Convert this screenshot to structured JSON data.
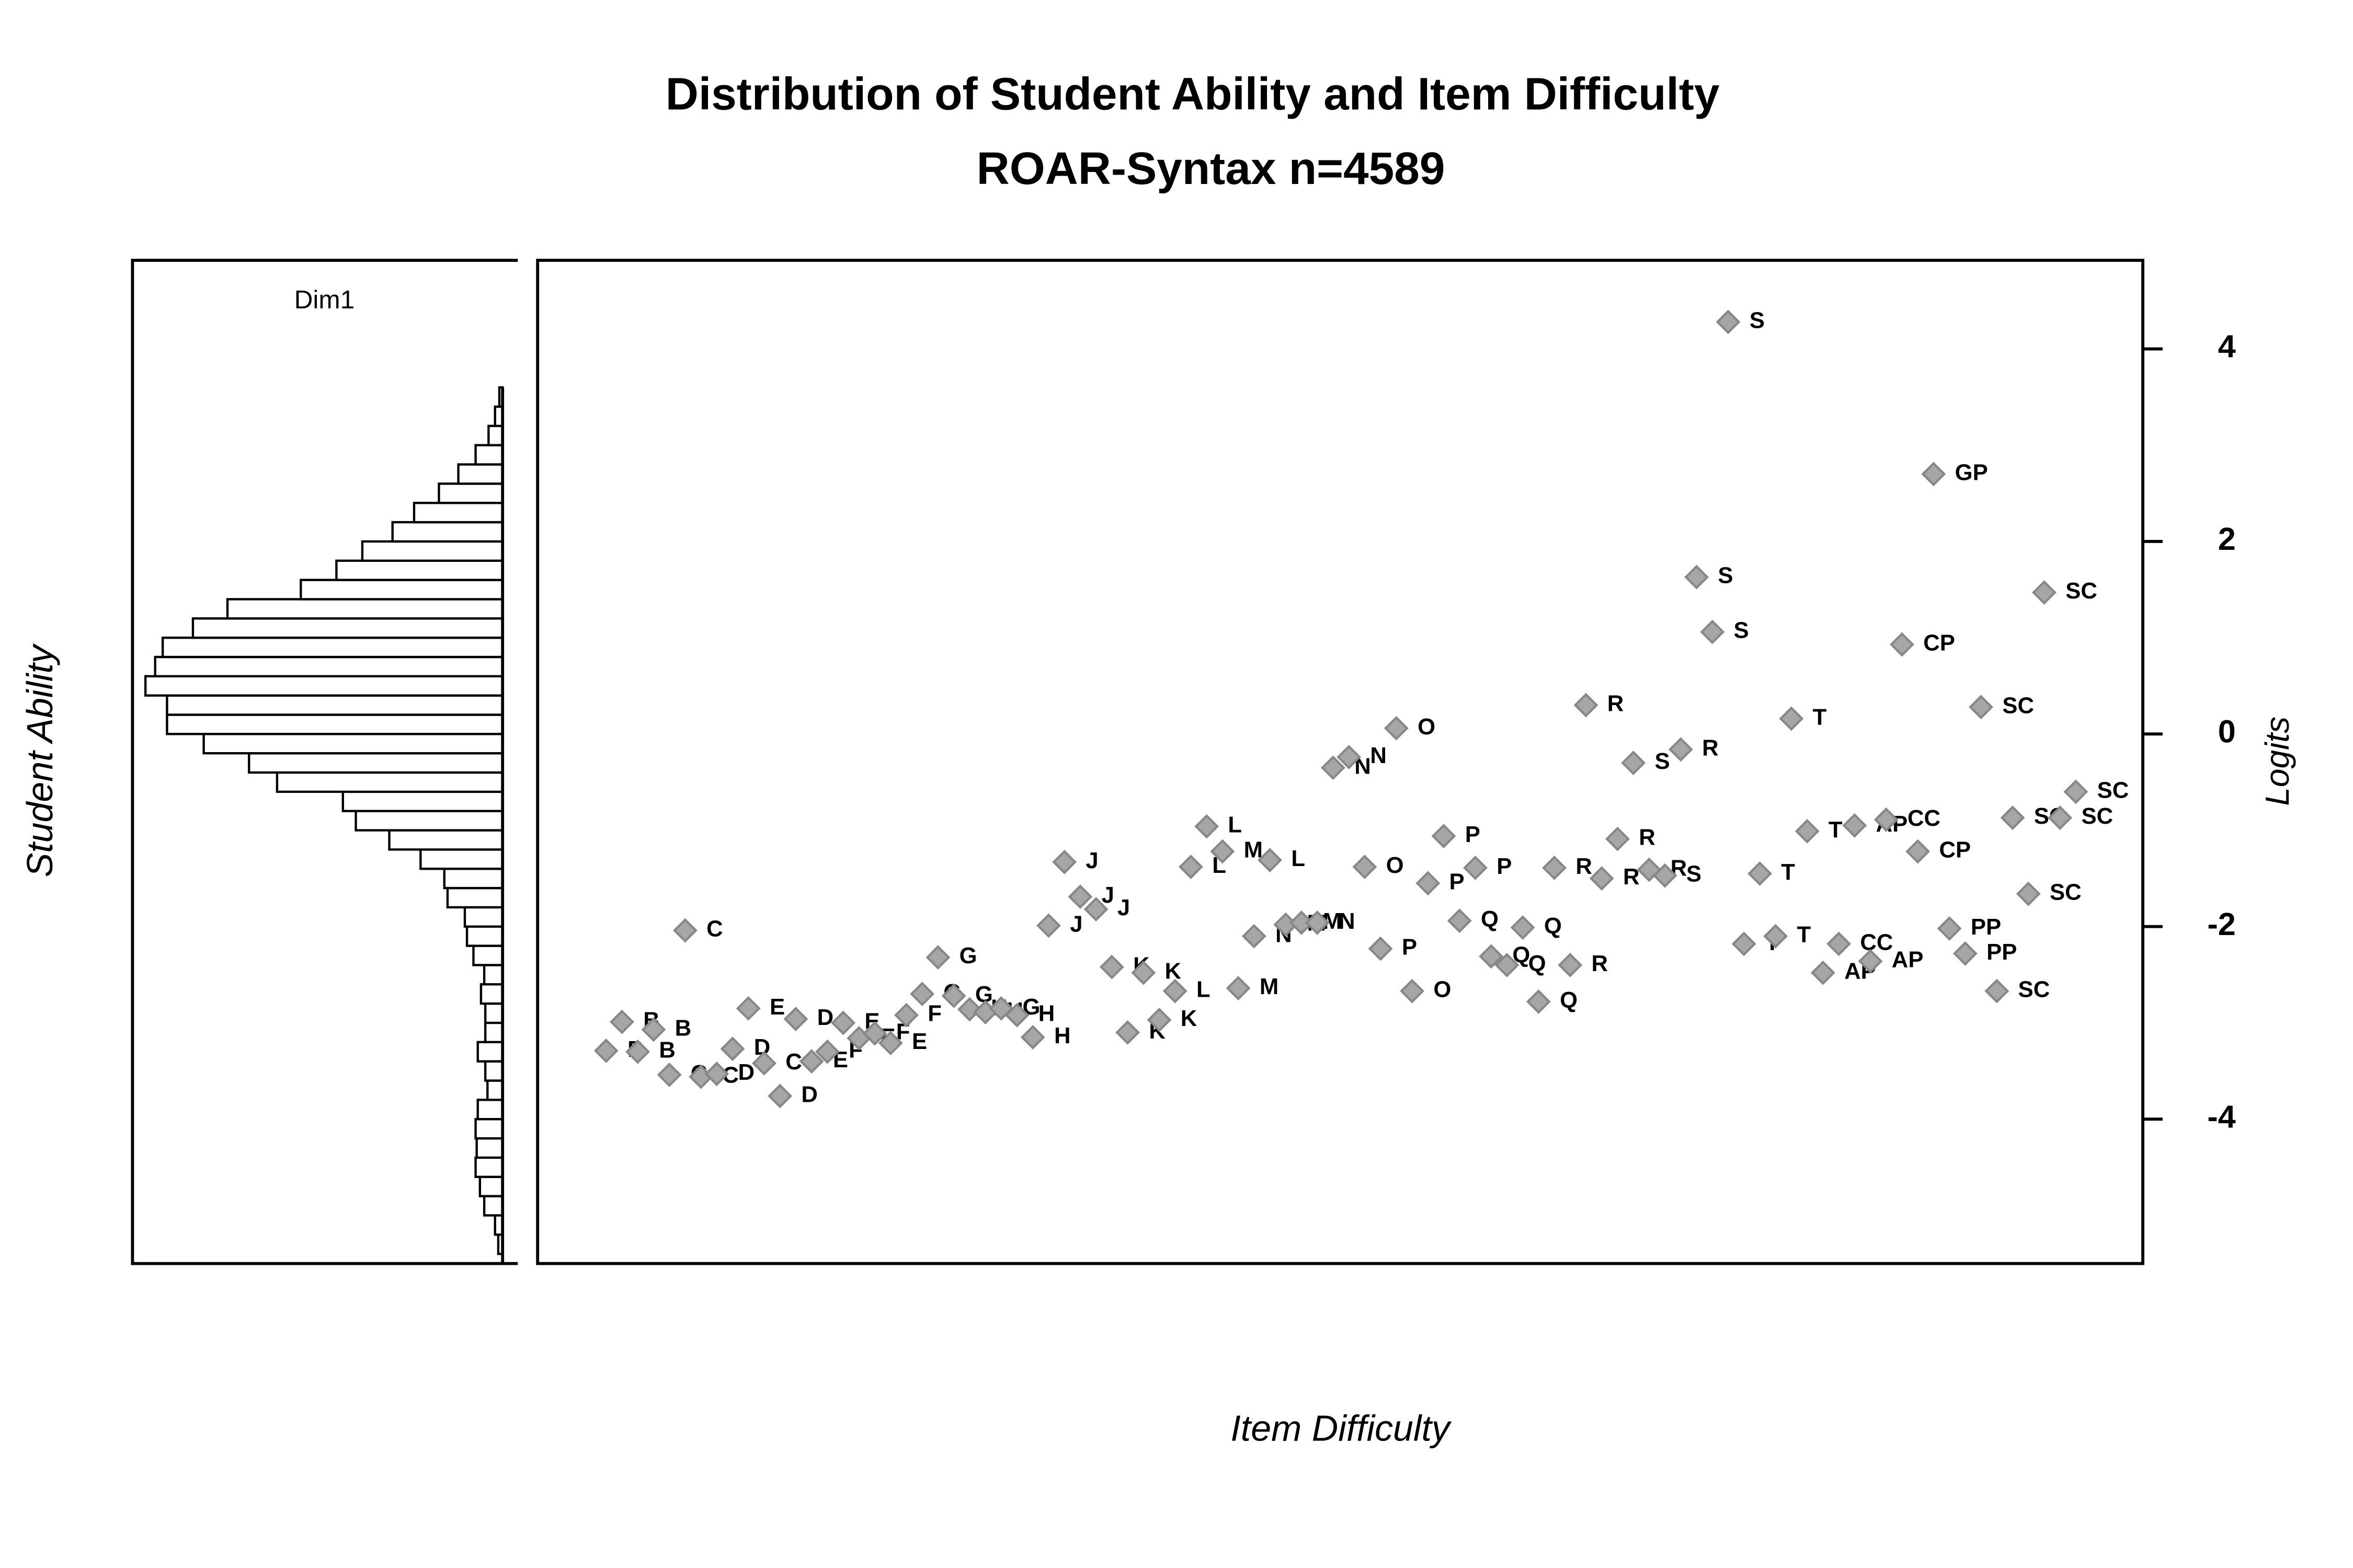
{
  "chart_data": [
    {
      "type": "histogram",
      "title": "Dim1",
      "y_label": "Student Ability",
      "bins": [
        -5.4,
        -5.2,
        -5.0,
        -4.8,
        -4.6,
        -4.4,
        -4.2,
        -4.0,
        -3.8,
        -3.6,
        -3.4,
        -3.2,
        -3.0,
        -2.8,
        -2.6,
        -2.4,
        -2.2,
        -2.0,
        -1.8,
        -1.6,
        -1.4,
        -1.2,
        -1.0,
        -0.8,
        -0.6,
        -0.4,
        -0.2,
        0.0,
        0.2,
        0.4,
        0.6,
        0.8,
        1.0,
        1.2,
        1.4,
        1.6,
        1.8,
        2.0,
        2.2,
        2.4,
        2.6,
        2.8,
        3.0,
        3.2,
        3.4,
        3.6
      ],
      "counts": [
        4,
        7,
        17,
        21,
        25,
        24,
        25,
        23,
        14,
        16,
        23,
        16,
        16,
        20,
        17,
        27,
        33,
        35,
        51,
        54,
        76,
        105,
        136,
        148,
        209,
        235,
        277,
        311,
        311,
        331,
        322,
        315,
        287,
        255,
        187,
        154,
        130,
        102,
        82,
        59,
        41,
        25,
        13,
        7,
        3
      ],
      "xlim": [
        0,
        343
      ],
      "ylim": [
        -5.5,
        4.92
      ]
    },
    {
      "type": "scatter",
      "title": "Distribution of Student Ability and Item Difficulty",
      "subtitle": "ROAR-Syntax n=4589",
      "x_label": "Item Difficulty",
      "y_label": "Logits",
      "color": "#a6a6a6",
      "categories": [
        "B",
        "B",
        "B",
        "B",
        "C",
        "C",
        "C",
        "D",
        "D",
        "E",
        "C",
        "D",
        "D",
        "E",
        "F",
        "E",
        "E",
        "F",
        "E",
        "F",
        "G",
        "G",
        "G",
        "H",
        "H",
        "G",
        "H",
        "H",
        "J",
        "J",
        "J",
        "J",
        "K",
        "K",
        "K",
        "K",
        "L",
        "L",
        "L",
        "M",
        "M",
        "N",
        "L",
        "M",
        "M",
        "N",
        "N",
        "N",
        "O",
        "P",
        "O",
        "O",
        "P",
        "P",
        "Q",
        "P",
        "Q",
        "Q",
        "Q",
        "Q",
        "R",
        "R",
        "R",
        "R",
        "R",
        "S",
        "R",
        "S",
        "R",
        "S",
        "S",
        "S",
        "T",
        "T",
        "T",
        "T",
        "T",
        "AP",
        "CC",
        "AP",
        "AP",
        "CC",
        "CP",
        "CP",
        "GP",
        "PP",
        "PP",
        "SC",
        "SC",
        "SC",
        "SC",
        "SC",
        "SC",
        "SC"
      ],
      "values": [
        -3.29,
        -2.99,
        -3.3,
        -3.07,
        -3.54,
        -2.04,
        -3.56,
        -3.53,
        -3.27,
        -2.85,
        -3.42,
        -3.76,
        -2.96,
        -3.4,
        -3.3,
        -3.0,
        -3.16,
        -3.11,
        -3.21,
        -2.92,
        -2.7,
        -2.32,
        -2.72,
        -2.86,
        -2.89,
        -2.85,
        -2.92,
        -3.15,
        -1.99,
        -1.33,
        -1.69,
        -1.82,
        -2.42,
        -3.1,
        -2.48,
        -2.97,
        -2.67,
        -1.38,
        -0.96,
        -1.22,
        -2.64,
        -2.1,
        -1.31,
        -1.98,
        -1.96,
        -1.96,
        -0.35,
        -0.24,
        -1.38,
        -2.23,
        0.06,
        -2.67,
        -1.55,
        -1.06,
        -1.94,
        -1.39,
        -2.31,
        -2.4,
        -2.01,
        -2.78,
        -1.39,
        -2.4,
        0.3,
        -1.5,
        -1.09,
        -0.3,
        -1.41,
        -1.47,
        -0.16,
        1.63,
        1.06,
        4.28,
        -2.18,
        -1.45,
        -2.1,
        0.16,
        -1.01,
        -2.48,
        -2.18,
        -0.95,
        -2.36,
        -0.89,
        0.93,
        -1.22,
        2.7,
        -2.02,
        -2.28,
        0.28,
        -2.67,
        -0.87,
        -1.66,
        1.47,
        -0.87,
        -0.6
      ],
      "ylim": [
        -5.5,
        4.92
      ],
      "yticks": [
        -4,
        -2,
        0,
        2,
        4
      ]
    }
  ]
}
